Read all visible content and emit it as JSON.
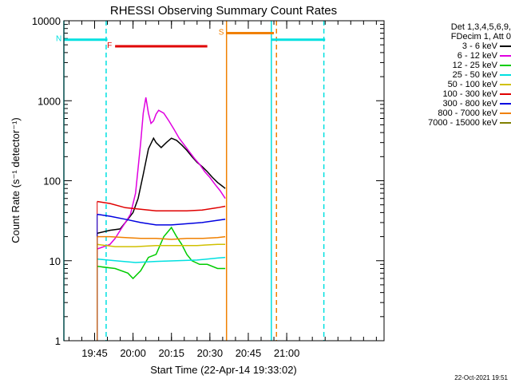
{
  "chart_data": {
    "type": "line",
    "title": "RHESSI Observing Summary Count Rates",
    "xlabel": "Start Time (22-Apr-14 19:33:02)",
    "ylabel": "Count Rate (s⁻¹ detector⁻¹)",
    "x_unit": "minutes since 19:33:02",
    "xlim": [
      0,
      125
    ],
    "ylim": [
      1,
      10000
    ],
    "y_scale": "log",
    "x_ticks": [
      {
        "value": 12.0,
        "label": "19:45"
      },
      {
        "value": 27.0,
        "label": "20:00"
      },
      {
        "value": 42.0,
        "label": "20:15"
      },
      {
        "value": 57.0,
        "label": "20:30"
      },
      {
        "value": 72.0,
        "label": "20:45"
      },
      {
        "value": 87.0,
        "label": "21:00"
      }
    ],
    "y_ticks": [
      {
        "value": 1,
        "label": "1"
      },
      {
        "value": 10,
        "label": "10"
      },
      {
        "value": 100,
        "label": "100"
      },
      {
        "value": 1000,
        "label": "1000"
      },
      {
        "value": 10000,
        "label": "10000"
      }
    ],
    "legend_header": [
      "Det 1,3,4,5,6,9,",
      "FDecim 1, Att 0"
    ],
    "series": [
      {
        "name": "3 - 6 keV",
        "color": "#000000",
        "x": [
          13,
          18,
          22,
          24,
          27,
          29,
          31,
          33,
          35,
          36,
          38,
          40,
          42,
          44,
          46,
          48,
          50,
          52,
          54,
          56,
          58,
          60,
          62,
          63
        ],
        "y": [
          22,
          24,
          25,
          30,
          40,
          60,
          120,
          250,
          340,
          300,
          260,
          300,
          340,
          320,
          280,
          240,
          200,
          170,
          150,
          130,
          110,
          95,
          85,
          80
        ]
      },
      {
        "name": "6 - 12 keV",
        "color": "#e000e0",
        "x": [
          13,
          18,
          20,
          22,
          24,
          26,
          28,
          30,
          31,
          32,
          33,
          34,
          35,
          36,
          37,
          39,
          41,
          43,
          45,
          47,
          49,
          51,
          53,
          55,
          57,
          59,
          61,
          63
        ],
        "y": [
          14,
          16,
          19,
          24,
          30,
          38,
          70,
          300,
          700,
          1100,
          700,
          520,
          560,
          680,
          760,
          700,
          560,
          440,
          340,
          280,
          230,
          190,
          160,
          130,
          110,
          90,
          75,
          60
        ]
      },
      {
        "name": "12 - 25 keV",
        "color": "#00cc00",
        "x": [
          13,
          20,
          25,
          27,
          30,
          33,
          36,
          39,
          42,
          44,
          46,
          48,
          50,
          53,
          56,
          60,
          63
        ],
        "y": [
          8.5,
          8.0,
          7.0,
          6.0,
          7.5,
          11,
          12,
          20,
          26,
          20,
          16,
          12,
          10,
          9,
          9,
          8,
          8
        ]
      },
      {
        "name": "25 - 50 keV",
        "color": "#00e0e0",
        "x": [
          13,
          20,
          28,
          36,
          44,
          52,
          60,
          63
        ],
        "y": [
          10.5,
          10,
          9.5,
          9.8,
          10,
          10.2,
          10.8,
          11
        ]
      },
      {
        "name": "50 - 100 keV",
        "color": "#d0c000",
        "x": [
          13,
          20,
          28,
          36,
          44,
          52,
          60,
          63
        ],
        "y": [
          16,
          15,
          15,
          15.5,
          15.5,
          15.5,
          16,
          16
        ]
      },
      {
        "name": "100 - 300 keV",
        "color": "#e00000",
        "x": [
          13,
          18,
          24,
          30,
          36,
          42,
          48,
          54,
          60,
          63
        ],
        "y": [
          55,
          52,
          46,
          44,
          42,
          42,
          42,
          43,
          46,
          48
        ]
      },
      {
        "name": "300 - 800 keV",
        "color": "#0000e0",
        "x": [
          13,
          18,
          24,
          30,
          36,
          42,
          48,
          54,
          60,
          63
        ],
        "y": [
          38,
          36,
          33,
          30,
          28,
          28,
          29,
          30,
          32,
          33
        ]
      },
      {
        "name": "800 - 7000 keV",
        "color": "#f08000",
        "x": [
          13,
          18,
          24,
          30,
          36,
          42,
          48,
          54,
          60,
          63
        ],
        "y": [
          20,
          20,
          19.5,
          19,
          19,
          18.5,
          19,
          19,
          19.5,
          20
        ]
      },
      {
        "name": "7000 - 15000 keV",
        "color": "#808000",
        "x": [],
        "y": []
      }
    ],
    "flags": [
      {
        "label": "N",
        "color": "#00e0e0",
        "x": [
          0,
          17
        ],
        "y": 5800
      },
      {
        "label": "F",
        "color": "#e00000",
        "x": [
          20,
          56
        ],
        "y": 4800
      },
      {
        "label": "S",
        "color": "#f08000",
        "x": [
          63.5,
          82
        ],
        "y": 7000
      },
      {
        "label": "",
        "color": "#00e0e0",
        "x": [
          81,
          102
        ],
        "y": 5800
      }
    ],
    "verticals": [
      {
        "x": 0,
        "color": "#00e0e0",
        "style": "solid"
      },
      {
        "x": 16.5,
        "color": "#00e0e0",
        "style": "dashed"
      },
      {
        "x": 63.5,
        "color": "#f08000",
        "style": "solid"
      },
      {
        "x": 81,
        "color": "#00e0e0",
        "style": "solid"
      },
      {
        "x": 83,
        "color": "#f08000",
        "style": "dashed"
      },
      {
        "x": 101.5,
        "color": "#00e0e0",
        "style": "dashed"
      }
    ]
  },
  "footer_date": "22-Oct-2021 19:51"
}
